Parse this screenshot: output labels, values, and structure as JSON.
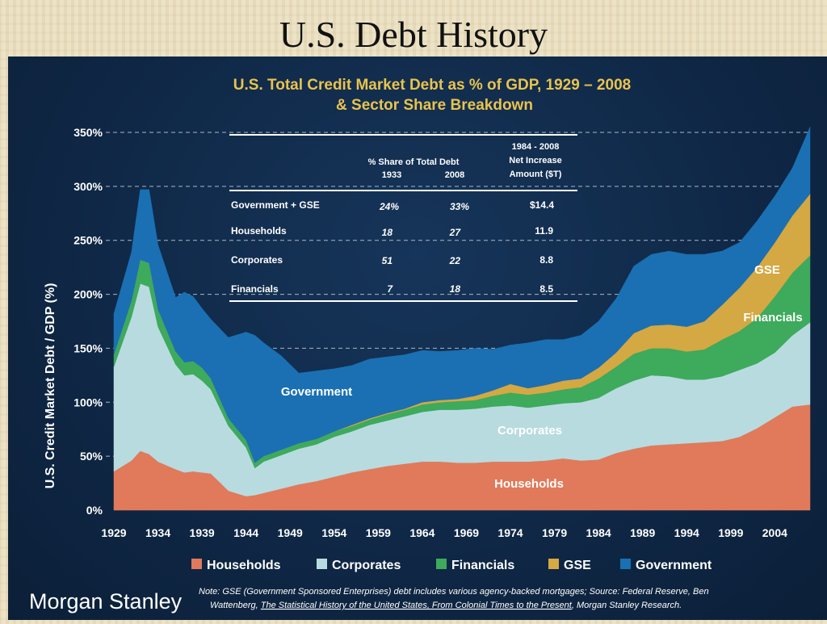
{
  "slide_title": "U.S. Debt History",
  "chart_data": {
    "type": "area",
    "stacked": true,
    "title": "U.S. Total Credit Market Debt as % of GDP, 1929 – 2008",
    "subtitle": "& Sector Share Breakdown",
    "ylabel": "U.S. Credit Market Debt / GDP (%)",
    "xlabel": "",
    "xlim": [
      1929,
      2008
    ],
    "ylim": [
      0,
      350
    ],
    "x_ticks": [
      "1929",
      "1934",
      "1939",
      "1944",
      "1949",
      "1954",
      "1959",
      "1964",
      "1969",
      "1974",
      "1979",
      "1984",
      "1989",
      "1994",
      "1999",
      "2004"
    ],
    "y_ticks": [
      "0%",
      "50%",
      "100%",
      "150%",
      "200%",
      "250%",
      "300%",
      "350%"
    ],
    "x": [
      1929,
      1931,
      1932,
      1933,
      1934,
      1936,
      1937,
      1938,
      1939,
      1940,
      1942,
      1944,
      1945,
      1946,
      1948,
      1950,
      1952,
      1954,
      1956,
      1958,
      1960,
      1962,
      1964,
      1966,
      1968,
      1970,
      1972,
      1974,
      1976,
      1978,
      1980,
      1982,
      1984,
      1986,
      1988,
      1990,
      1992,
      1994,
      1996,
      1998,
      2000,
      2002,
      2004,
      2006,
      2008
    ],
    "series": [
      {
        "name": "Households",
        "color": "#e07a5a",
        "values": [
          36,
          46,
          55,
          52,
          45,
          38,
          35,
          36,
          35,
          34,
          18,
          13,
          14,
          16,
          20,
          24,
          27,
          31,
          35,
          38,
          41,
          43,
          45,
          45,
          44,
          44,
          45,
          45,
          45,
          46,
          48,
          46,
          47,
          53,
          57,
          60,
          61,
          62,
          63,
          64,
          68,
          76,
          86,
          96,
          98
        ]
      },
      {
        "name": "Corporates",
        "color": "#b8dbe0",
        "values": [
          97,
          133,
          155,
          155,
          125,
          97,
          90,
          90,
          85,
          78,
          60,
          45,
          25,
          29,
          31,
          33,
          34,
          37,
          38,
          41,
          42,
          44,
          46,
          48,
          49,
          50,
          51,
          52,
          50,
          51,
          51,
          54,
          57,
          60,
          63,
          65,
          63,
          59,
          58,
          60,
          62,
          60,
          60,
          66,
          76
        ]
      },
      {
        "name": "Financials",
        "color": "#3daa5c",
        "values": [
          11,
          15,
          22,
          22,
          16,
          12,
          12,
          12,
          12,
          10,
          7,
          7,
          5,
          5,
          5,
          5,
          5,
          5,
          5,
          5,
          6,
          6,
          7,
          7,
          8,
          8,
          10,
          12,
          12,
          12,
          13,
          14,
          18,
          20,
          25,
          25,
          26,
          26,
          28,
          34,
          36,
          42,
          52,
          58,
          62
        ]
      },
      {
        "name": "GSE",
        "color": "#d4a843",
        "values": [
          0,
          0,
          0,
          0,
          0,
          0,
          0,
          0,
          0,
          0,
          0,
          0,
          0,
          0,
          0,
          0,
          0,
          0,
          1,
          1,
          1,
          1,
          2,
          2,
          2,
          4,
          5,
          8,
          6,
          7,
          8,
          8,
          10,
          13,
          19,
          21,
          22,
          23,
          26,
          32,
          40,
          47,
          50,
          53,
          57
        ]
      },
      {
        "name": "Government",
        "color": "#1a70b2",
        "values": [
          38,
          45,
          65,
          68,
          60,
          50,
          65,
          60,
          55,
          55,
          75,
          100,
          118,
          105,
          87,
          65,
          63,
          58,
          55,
          55,
          52,
          50,
          48,
          45,
          45,
          44,
          38,
          36,
          42,
          42,
          38,
          40,
          43,
          50,
          62,
          66,
          68,
          67,
          62,
          50,
          42,
          43,
          43,
          44,
          62
        ]
      }
    ],
    "area_labels": [
      "Government",
      "Corporates",
      "Households",
      "GSE",
      "Financials"
    ],
    "legend": {
      "position": "bottom",
      "items": [
        "Households",
        "Corporates",
        "Financials",
        "GSE",
        "Government"
      ]
    },
    "grid": {
      "y": true,
      "style": "dashed"
    },
    "table": {
      "headers": {
        "share_title": "% Share of Total Debt",
        "col_1933": "1933",
        "col_2008": "2008",
        "net_line1": "1984 - 2008",
        "net_line2": "Net Increase",
        "net_line3": "Amount ($T)"
      },
      "rows": [
        {
          "sector": "Government + GSE",
          "share_1933": "24%",
          "share_2008": "33%",
          "net_increase": "$14.4"
        },
        {
          "sector": "Households",
          "share_1933": "18",
          "share_2008": "27",
          "net_increase": "11.9"
        },
        {
          "sector": "Corporates",
          "share_1933": "51",
          "share_2008": "22",
          "net_increase": "8.8"
        },
        {
          "sector": "Financials",
          "share_1933": "7",
          "share_2008": "18",
          "net_increase": "8.5"
        }
      ]
    }
  },
  "note": {
    "line1": "Note: GSE (Government Sponsored Enterprises) debt includes various agency-backed mortgages; Source: Federal Reserve, Ben",
    "line2_a": "Wattenberg, ",
    "line2_b": "The Statistical History of the United States, From Colonial Times to the Present",
    "line2_c": ", Morgan Stanley Research."
  },
  "logo": "Morgan Stanley"
}
